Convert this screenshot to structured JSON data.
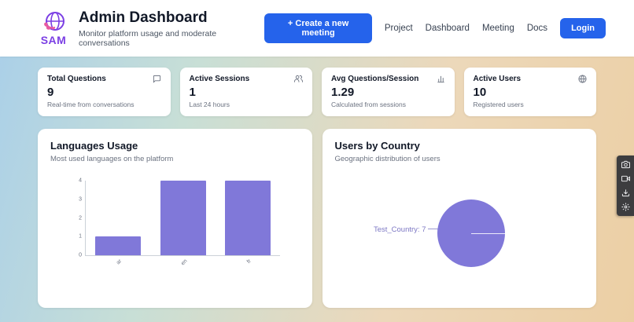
{
  "header": {
    "logo_text": "SAM",
    "title": "Admin Dashboard",
    "subtitle": "Monitor platform usage and moderate conversations",
    "create_meeting_label": "+ Create a new meeting",
    "nav_items": [
      "Project",
      "Dashboard",
      "Meeting",
      "Docs"
    ],
    "login_label": "Login"
  },
  "stats": {
    "cards": [
      {
        "title": "Total Questions",
        "icon": "chat-icon",
        "value": "9",
        "subtitle": "Real-time from conversations"
      },
      {
        "title": "Active Sessions",
        "icon": "users-icon",
        "value": "1",
        "subtitle": "Last 24 hours"
      },
      {
        "title": "Avg Questions/Session",
        "icon": "bar-chart-icon",
        "value": "1.29",
        "subtitle": "Calculated from sessions"
      },
      {
        "title": "Active Users",
        "icon": "globe-icon",
        "value": "10",
        "subtitle": "Registered users"
      }
    ]
  },
  "charts": {
    "languages": {
      "title": "Languages Usage",
      "subtitle": "Most used languages on the platform"
    },
    "countries": {
      "title": "Users by Country",
      "subtitle": "Geographic distribution of users"
    }
  },
  "chart_data": [
    {
      "type": "bar",
      "title": "Languages Usage",
      "categories": [
        "ar",
        "en",
        "fr"
      ],
      "values": [
        1,
        4,
        4
      ],
      "xlabel": "",
      "ylabel": "",
      "ylim": [
        0,
        4
      ],
      "yticks": [
        0,
        1,
        2,
        3,
        4
      ],
      "bar_color": "#8078d9",
      "grid": false,
      "legend": false
    },
    {
      "type": "pie",
      "title": "Users by Country",
      "slices": [
        {
          "label": "Test_Country",
          "value": 7,
          "color": "#8078d9",
          "display": "Test_Country: 7"
        }
      ],
      "legend": false
    }
  ],
  "side_toolbar": {
    "icons": [
      "camera-icon",
      "video-icon",
      "download-icon",
      "settings-icon"
    ]
  },
  "colors": {
    "accent_blue": "#2563eb",
    "chart_purple": "#8078d9",
    "logo_purple": "#7b3fe4",
    "logo_pink": "#e85aa0"
  }
}
